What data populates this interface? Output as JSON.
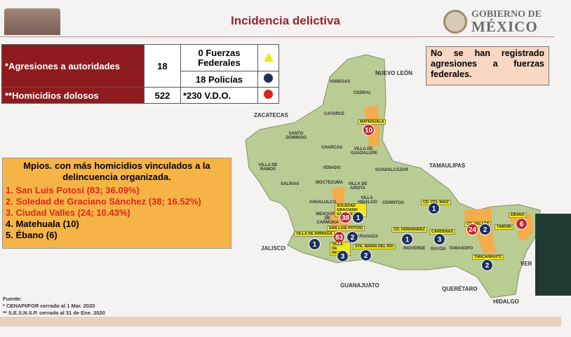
{
  "header": {
    "title": "Incidencia delictiva",
    "gov_line1": "GOBIERNO DE",
    "gov_line2": "MÉXICO"
  },
  "summary_table": {
    "rows": [
      {
        "label": "*Agresiones a autoridades",
        "value": "18",
        "sub": [
          {
            "text": "0 Fuerzas Federales",
            "icon": "yellow-triangle"
          },
          {
            "text": "18 Policías",
            "icon": "blue-circle"
          }
        ]
      },
      {
        "label": "**Homicidios dolosos",
        "value": "522",
        "sub": [
          {
            "text": "*230 V.D.O.",
            "icon": "red-circle"
          }
        ]
      }
    ]
  },
  "note": "No se han registrado agresiones a fuerzas federales.",
  "mpios": {
    "heading": "Mpios. con más homicidios vinculados a la delincuencia organizada.",
    "items": [
      "1. San Luis Potosí (83; 36.09%)",
      "2. Soledad de Graciano Sánchez (38; 16.52%)",
      "3. Ciudad Valles (24; 10.43%)",
      "4. Matehuala (10)",
      "5. Ébano (6)"
    ]
  },
  "source": {
    "label": "Fuente:",
    "lines": [
      "* CENAPI/FGR cerrado al 1 Mar. 2020",
      "** S.E.S.N.S.P. cerrado al 31 de Ene. 2020"
    ]
  },
  "map": {
    "states": [
      "NUEVO LEÓN",
      "ZACATECAS",
      "TAMAULIPAS",
      "JALISCO",
      "GUANAJUATO",
      "QUERÉTARO",
      "HIDALGO",
      "VER"
    ],
    "municipalities": [
      "VANEGAS",
      "CEDRAL",
      "CATORCE",
      "SANTO DOMINGO",
      "CHARCAS",
      "VILLA DE GUADALUPE",
      "VILLA DE RAMOS",
      "VENADO",
      "GUADALCÁZAR",
      "SALINAS",
      "MOCTEZUMA",
      "VILLA DE ARISTA",
      "AHUALULCO",
      "VILLA HIDALGO",
      "CERRITOS",
      "MEXQUITIC DE CARMONA",
      "ZARAGOZA",
      "RIOVERDE",
      "RAYÓN",
      "TAMASOPO"
    ],
    "markers": [
      {
        "label": "MATEHUALA",
        "count": "10",
        "color": "red"
      },
      {
        "label": "SOLEDAD GRACIANO SÁNCHEZ",
        "count": "38",
        "color": "red",
        "count2": "1"
      },
      {
        "label": "SAN LUIS POTOSÍ",
        "count": "83",
        "color": "red",
        "count2": "2"
      },
      {
        "label": "VILLA DE ARRIAGA",
        "count": "1",
        "color": "blue"
      },
      {
        "label": "VILLA DE REYES",
        "count": "3",
        "color": "blue"
      },
      {
        "label": "STA. MARÍA DEL RÍO",
        "count": "2",
        "color": "blue"
      },
      {
        "label": "CD. FERNÁNDEZ",
        "count": "1",
        "color": "blue"
      },
      {
        "label": "CD. DEL MAÍZ",
        "count": "1",
        "color": "blue"
      },
      {
        "label": "CÁRDENAS",
        "count": "3",
        "color": "blue"
      },
      {
        "label": "CD. VALLES",
        "count": "24",
        "color": "red",
        "count2": "2"
      },
      {
        "label": "TAMUÍN"
      },
      {
        "label": "ÉBANO",
        "count": "6",
        "color": "red"
      },
      {
        "label": "TANCANHUITZ",
        "count": "2",
        "color": "blue"
      }
    ],
    "colors": {
      "land": "#b9cc94",
      "highlight": "#f4ac4c",
      "red": "#c1272d",
      "blue": "#1e2f5c",
      "label": "#f1e81a"
    }
  }
}
